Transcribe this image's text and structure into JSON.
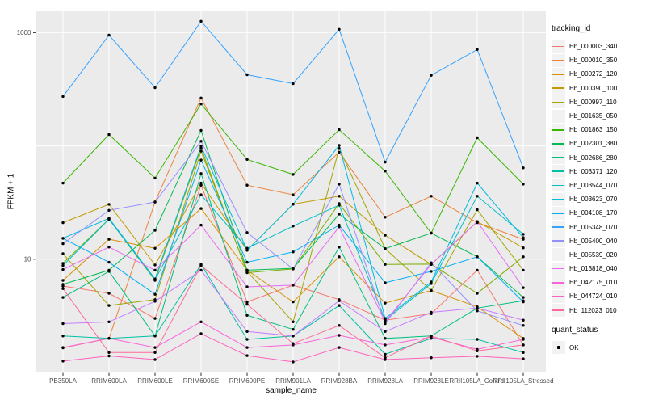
{
  "figure": {
    "background": "#FFFFFF",
    "panel_bg": "#EBEBEB",
    "grid_color": "#FFFFFF",
    "tick_color": "#333333",
    "tick_label_color": "#4D4D4D",
    "point_color": "#000000",
    "xlabel": "sample_name",
    "ylabel": "FPKM + 1"
  },
  "legend": {
    "tracking_title": "tracking_id",
    "quant_title": "quant_status",
    "key_bg": "#F2F2F2",
    "quant_items": [
      {
        "label": "OK",
        "marker": "black-point"
      }
    ]
  },
  "chart_data": {
    "type": "line",
    "title": "",
    "xlabel": "sample_name",
    "ylabel": "FPKM + 1",
    "x_type": "categorical",
    "y_scale": "log10",
    "ylim": [
      1,
      1550
    ],
    "y_ticks": [
      10,
      1000
    ],
    "y_tick_labels": [
      "10",
      "1000"
    ],
    "y_gridlines": [
      10,
      100,
      1000
    ],
    "grid": "major-only",
    "legend_position": "right",
    "point_marker": "black dot on every vertex (quant_status = OK)",
    "categories": [
      "PB350LA",
      "RRIM600LA",
      "RRIM600LE",
      "RRIM600SE",
      "RRIM600PE",
      "RRIM901LA",
      "RRIM928BA",
      "RRIM928LA",
      "RRIM928LE",
      "RRII105LA_Control",
      "RRII105LA_Stressed"
    ],
    "series": [
      {
        "name": "Hb_000003_340",
        "color": "#F8766D",
        "values": [
          5.8,
          5.0,
          3.0,
          45,
          4.2,
          5.9,
          4.4,
          2.9,
          3.3,
          8.0,
          1.75
        ]
      },
      {
        "name": "Hb_000010_350",
        "color": "#ED813E",
        "values": [
          1.65,
          2.0,
          32,
          265,
          45,
          37,
          88,
          23.5,
          36,
          21,
          15
        ]
      },
      {
        "name": "Hb_000272_120",
        "color": "#D89000",
        "values": [
          6.5,
          15,
          12.5,
          28,
          8.0,
          4.2,
          10.5,
          4.1,
          5.3,
          3.8,
          2.0
        ]
      },
      {
        "name": "Hb_000390_100",
        "color": "#C09B00",
        "values": [
          21,
          30.5,
          8.9,
          47,
          12,
          30.6,
          36,
          16.3,
          9.0,
          21.5,
          12.6
        ]
      },
      {
        "name": "Hb_000997_110",
        "color": "#A3A500",
        "values": [
          11.2,
          3.9,
          4.4,
          90,
          7.8,
          2.8,
          95,
          12.4,
          5.3,
          27.3,
          8.0
        ]
      },
      {
        "name": "Hb_001635_050",
        "color": "#7CAE00",
        "values": [
          9.2,
          22.6,
          6.5,
          96,
          7.6,
          8.2,
          31,
          9.0,
          9.05,
          5.0,
          10.5
        ]
      },
      {
        "name": "Hb_001863_150",
        "color": "#39B600",
        "values": [
          47,
          126,
          52,
          235,
          76,
          56,
          139,
          60,
          17,
          118,
          46
        ]
      },
      {
        "name": "Hb_002301_380",
        "color": "#00BB4E",
        "values": [
          6.0,
          8.0,
          18,
          137,
          8.0,
          8.3,
          25,
          12.4,
          17,
          10.5,
          4.6
        ]
      },
      {
        "name": "Hb_002686_280",
        "color": "#00BF7D",
        "values": [
          4.6,
          7.8,
          2.1,
          57,
          3.2,
          2.4,
          12.8,
          2.0,
          2.1,
          3.7,
          4.3
        ]
      },
      {
        "name": "Hb_003371_120",
        "color": "#00C1A3",
        "values": [
          2.1,
          2.0,
          2.1,
          9.0,
          1.96,
          2.1,
          3.9,
          1.45,
          2.0,
          1.96,
          1.5
        ]
      },
      {
        "name": "Hb_003544_070",
        "color": "#00BFC4",
        "values": [
          8.8,
          22.6,
          6.6,
          37,
          12.5,
          19.6,
          30,
          2.9,
          6.1,
          36,
          16.6
        ]
      },
      {
        "name": "Hb_003623_070",
        "color": "#00BAE0",
        "values": [
          15.3,
          23,
          6.7,
          100,
          12.0,
          30.6,
          101,
          3.0,
          6.3,
          47,
          15.5
        ]
      },
      {
        "name": "Hb_004108_170",
        "color": "#00B0F6",
        "values": [
          15.3,
          9.4,
          4.9,
          75,
          9.4,
          11.6,
          20,
          6.2,
          7.8,
          10.5,
          4.2
        ]
      },
      {
        "name": "Hb_005348_070",
        "color": "#35A2FF",
        "values": [
          273,
          950,
          327,
          1260,
          425,
          355,
          1070,
          72,
          420,
          710,
          64
        ]
      },
      {
        "name": "Hb_005400_040",
        "color": "#9590FF",
        "values": [
          13.7,
          27,
          32,
          110,
          17.2,
          8.2,
          46,
          2.7,
          9.3,
          3.5,
          2.6
        ]
      },
      {
        "name": "Hb_005539_020",
        "color": "#C77CFF",
        "values": [
          2.7,
          2.8,
          4.25,
          8.0,
          2.3,
          2.1,
          4.3,
          2.3,
          3.4,
          3.7,
          2.9
        ]
      },
      {
        "name": "Hb_013818_040",
        "color": "#E76BF3",
        "values": [
          8.1,
          12.8,
          8.0,
          20,
          5.7,
          5.9,
          19.3,
          2.8,
          9.0,
          21.5,
          5.6
        ]
      },
      {
        "name": "Hb_042175_010",
        "color": "#FA62DB",
        "values": [
          1.66,
          2.0,
          1.66,
          2.8,
          1.66,
          1.75,
          2.13,
          1.75,
          2.05,
          1.6,
          1.96
        ]
      },
      {
        "name": "Hb_044724_010",
        "color": "#FF62BC",
        "values": [
          1.26,
          1.4,
          1.3,
          2.2,
          1.41,
          1.24,
          1.66,
          1.3,
          1.35,
          1.39,
          1.32
        ]
      },
      {
        "name": "Hb_112023_010",
        "color": "#FF6A98",
        "values": [
          5.5,
          1.5,
          1.5,
          8.8,
          4.0,
          1.8,
          2.6,
          1.35,
          2.1,
          1.55,
          1.75
        ]
      }
    ]
  }
}
